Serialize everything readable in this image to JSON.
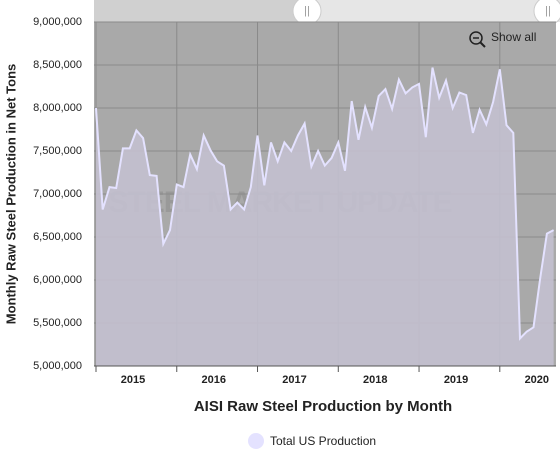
{
  "chart_data": {
    "type": "area",
    "title": "AISI Raw Steel Production by Month",
    "y_axis_label": "Monthly Raw Steel Production in Net Tons",
    "reset_button": "Show all",
    "watermark": "STEEL MARKET UPDATE",
    "categories": [
      "2015",
      null,
      null,
      null,
      null,
      null,
      null,
      null,
      null,
      null,
      null,
      null,
      "2016",
      null,
      null,
      null,
      null,
      null,
      null,
      null,
      null,
      null,
      null,
      null,
      "2017",
      null,
      null,
      null,
      null,
      null,
      null,
      null,
      null,
      null,
      null,
      null,
      "2018",
      null,
      null,
      null,
      null,
      null,
      null,
      null,
      null,
      null,
      null,
      null,
      "2019",
      null,
      null,
      null,
      null,
      null,
      null,
      null,
      null,
      null,
      null,
      null,
      "2020",
      null,
      null,
      null,
      null,
      null,
      null,
      null,
      null
    ],
    "series": [
      {
        "name": "Total US Production",
        "color": "#e4e2ff",
        "fill": "#c3c0cf",
        "values": [
          8000000,
          6820000,
          7080000,
          7070000,
          7530000,
          7530000,
          7740000,
          7650000,
          7220000,
          7210000,
          6420000,
          6580000,
          7110000,
          7080000,
          7460000,
          7290000,
          7680000,
          7510000,
          7380000,
          7330000,
          6820000,
          6900000,
          6820000,
          7080000,
          7680000,
          7100000,
          7600000,
          7380000,
          7600000,
          7500000,
          7680000,
          7820000,
          7320000,
          7500000,
          7330000,
          7420000,
          7600000,
          7270000,
          8080000,
          7630000,
          8010000,
          7770000,
          8140000,
          8220000,
          7990000,
          8330000,
          8170000,
          8240000,
          8280000,
          7660000,
          8470000,
          8120000,
          8320000,
          8000000,
          8180000,
          8150000,
          7710000,
          7980000,
          7810000,
          8070000,
          8450000,
          7800000,
          7710000,
          5320000,
          5400000,
          5450000,
          6020000,
          6540000,
          6580000
        ]
      }
    ],
    "ylim": [
      5000000,
      9000000
    ],
    "yticks": [
      {
        "value": 5000000,
        "label": "5,000,000"
      },
      {
        "value": 5500000,
        "label": "5,500,000"
      },
      {
        "value": 6000000,
        "label": "6,000,000"
      },
      {
        "value": 6500000,
        "label": "6,500,000"
      },
      {
        "value": 7000000,
        "label": "7,000,000"
      },
      {
        "value": 7500000,
        "label": "7,500,000"
      },
      {
        "value": 8000000,
        "label": "8,000,000"
      },
      {
        "value": 8500000,
        "label": "8,500,000"
      },
      {
        "value": 9000000,
        "label": "9,000,000"
      }
    ],
    "grid": true,
    "plot_background": "#a9a9a9",
    "legend": "bottom"
  }
}
